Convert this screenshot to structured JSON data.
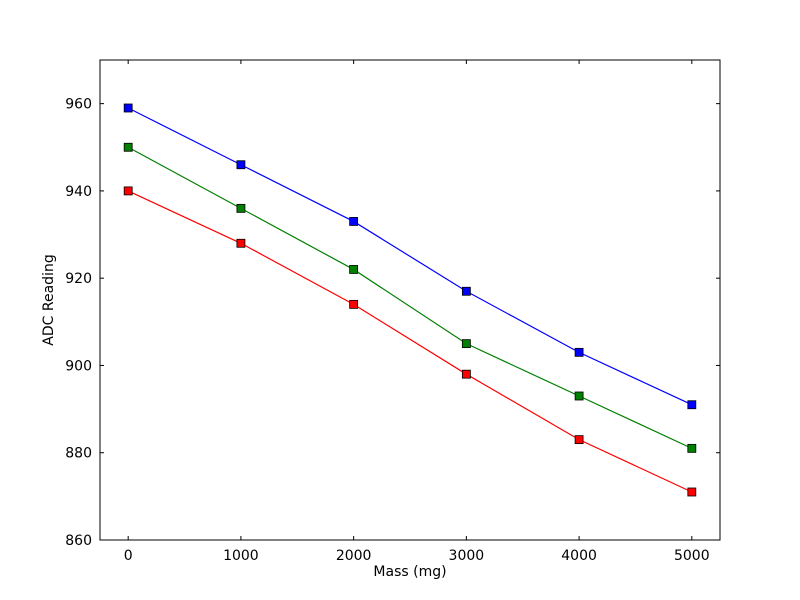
{
  "chart_data": {
    "type": "line",
    "title": "",
    "xlabel": "Mass (mg)",
    "ylabel": "ADC Reading",
    "xlim": [
      -250,
      5250
    ],
    "ylim": [
      860,
      970
    ],
    "xticks": [
      0,
      1000,
      2000,
      3000,
      4000,
      5000
    ],
    "yticks": [
      860,
      880,
      900,
      920,
      940,
      960
    ],
    "x": [
      0,
      1000,
      2000,
      3000,
      4000,
      5000
    ],
    "grid": false,
    "series": [
      {
        "color": "#0000ff",
        "marker": "square",
        "values": [
          959,
          946,
          933,
          917,
          903,
          891
        ]
      },
      {
        "color": "#008000",
        "marker": "square",
        "values": [
          950,
          936,
          922,
          905,
          893,
          881
        ]
      },
      {
        "color": "#ff0000",
        "marker": "square",
        "values": [
          940,
          928,
          914,
          898,
          883,
          871
        ]
      }
    ]
  }
}
